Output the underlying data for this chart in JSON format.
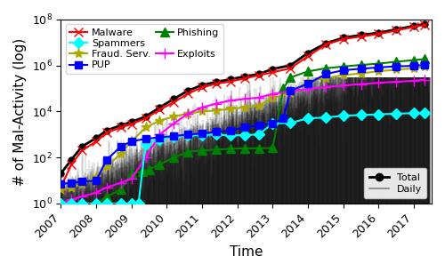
{
  "xlabel": "Time",
  "ylabel": "# of Mal-Activity (log)",
  "xlim": [
    2007.0,
    2017.5
  ],
  "series": {
    "total": {
      "years": [
        2007.0,
        2007.3,
        2007.6,
        2008.0,
        2008.3,
        2008.7,
        2009.0,
        2009.4,
        2009.8,
        2010.2,
        2010.6,
        2011.0,
        2011.4,
        2011.8,
        2012.2,
        2012.6,
        2013.0,
        2013.5,
        2014.0,
        2014.5,
        2015.0,
        2015.5,
        2016.0,
        2016.5,
        2017.0,
        2017.3
      ],
      "values": [
        20,
        80,
        300,
        700,
        1500,
        2500,
        3500,
        6000,
        15000,
        35000,
        80000,
        140000,
        190000,
        250000,
        330000,
        420000,
        700000,
        1000000,
        3500000,
        9000000,
        16000000,
        21000000,
        26000000,
        37000000,
        52000000,
        62000000
      ],
      "color": "black",
      "marker": "o",
      "markersize": 5,
      "linewidth": 2.0,
      "label": "Total"
    },
    "malware": {
      "years": [
        2007.0,
        2007.3,
        2007.6,
        2008.0,
        2008.3,
        2008.7,
        2009.0,
        2009.4,
        2009.8,
        2010.2,
        2010.6,
        2011.0,
        2011.4,
        2011.8,
        2012.2,
        2012.6,
        2013.0,
        2013.5,
        2014.0,
        2014.5,
        2015.0,
        2015.5,
        2016.0,
        2016.5,
        2017.0,
        2017.3
      ],
      "values": [
        5,
        50,
        200,
        500,
        1200,
        2000,
        2800,
        5000,
        12000,
        25000,
        60000,
        110000,
        160000,
        200000,
        270000,
        370000,
        500000,
        750000,
        2500000,
        8000000,
        14000000,
        18000000,
        23000000,
        33000000,
        47000000,
        57000000
      ],
      "color": "red",
      "marker": "x",
      "markersize": 7,
      "linewidth": 1.5,
      "label": "Malware"
    },
    "fraud_serv": {
      "years": [
        2007.0,
        2007.3,
        2007.6,
        2008.0,
        2008.3,
        2008.7,
        2009.0,
        2009.4,
        2009.8,
        2010.2,
        2010.6,
        2011.0,
        2011.4,
        2011.8,
        2012.2,
        2012.6,
        2013.0,
        2013.5,
        2014.0,
        2014.5,
        2015.0,
        2015.5,
        2016.0,
        2016.5,
        2017.0,
        2017.3
      ],
      "values": [
        4,
        5,
        7,
        15,
        40,
        150,
        500,
        2000,
        4000,
        6000,
        8000,
        10000,
        11000,
        13000,
        15000,
        18000,
        38000,
        60000,
        200000,
        280000,
        380000,
        450000,
        560000,
        650000,
        750000,
        850000
      ],
      "color": "#aaaa00",
      "marker": "*",
      "markersize": 8,
      "linewidth": 1.5,
      "label": "Fraud. Serv."
    },
    "phishing": {
      "years": [
        2007.0,
        2007.3,
        2007.6,
        2008.0,
        2008.3,
        2008.7,
        2009.0,
        2009.3,
        2009.5,
        2009.8,
        2010.2,
        2010.6,
        2011.0,
        2011.4,
        2011.8,
        2012.2,
        2012.6,
        2013.0,
        2013.3,
        2013.5,
        2014.0,
        2014.5,
        2015.0,
        2015.5,
        2016.0,
        2016.5,
        2017.0,
        2017.3
      ],
      "values": [
        0.3,
        0.4,
        0.5,
        1,
        2,
        4,
        20,
        25,
        30,
        50,
        100,
        180,
        200,
        220,
        240,
        250,
        250,
        260,
        100000,
        300000,
        550000,
        750000,
        900000,
        1050000,
        1200000,
        1450000,
        1700000,
        1900000
      ],
      "color": "green",
      "marker": "^",
      "markersize": 7,
      "linewidth": 1.5,
      "label": "Phishing"
    },
    "exploits": {
      "years": [
        2007.0,
        2007.3,
        2007.6,
        2008.0,
        2008.3,
        2008.7,
        2009.0,
        2009.4,
        2009.8,
        2010.2,
        2010.6,
        2011.0,
        2011.4,
        2011.8,
        2012.2,
        2012.6,
        2013.0,
        2013.5,
        2014.0,
        2014.5,
        2015.0,
        2015.5,
        2016.0,
        2016.5,
        2017.0,
        2017.3
      ],
      "values": [
        1,
        1.5,
        2,
        3,
        5,
        8,
        12,
        100,
        1000,
        3000,
        8000,
        15000,
        22000,
        30000,
        35000,
        40000,
        58000,
        75000,
        95000,
        115000,
        135000,
        155000,
        175000,
        195000,
        215000,
        240000
      ],
      "color": "magenta",
      "marker": "+",
      "markersize": 8,
      "linewidth": 1.5,
      "label": "Exploits"
    },
    "spammers": {
      "years": [
        2007.0,
        2007.3,
        2007.6,
        2008.0,
        2008.3,
        2008.7,
        2009.0,
        2009.2,
        2009.4,
        2009.8,
        2010.2,
        2010.6,
        2011.0,
        2011.4,
        2011.8,
        2012.2,
        2012.6,
        2013.0,
        2013.5,
        2014.0,
        2014.5,
        2015.0,
        2015.5,
        2016.0,
        2016.5,
        2017.0,
        2017.3
      ],
      "values": [
        1,
        1,
        1,
        1,
        1,
        1,
        1,
        1,
        400,
        600,
        800,
        900,
        950,
        1000,
        900,
        950,
        1000,
        3000,
        3200,
        5000,
        5500,
        6500,
        7000,
        7500,
        8000,
        8500,
        9000
      ],
      "color": "cyan",
      "marker": "D",
      "markersize": 6,
      "linewidth": 1.5,
      "label": "Spammers"
    },
    "pup": {
      "years": [
        2007.0,
        2007.3,
        2007.6,
        2008.0,
        2008.3,
        2008.7,
        2009.0,
        2009.4,
        2009.8,
        2010.2,
        2010.6,
        2011.0,
        2011.4,
        2011.8,
        2012.2,
        2012.6,
        2013.0,
        2013.3,
        2013.5,
        2014.0,
        2014.5,
        2015.0,
        2015.5,
        2016.0,
        2016.5,
        2017.0,
        2017.3
      ],
      "values": [
        7,
        8,
        9,
        10,
        80,
        300,
        500,
        650,
        750,
        850,
        1000,
        1100,
        1300,
        1500,
        2000,
        2500,
        3000,
        5000,
        80000,
        160000,
        420000,
        620000,
        720000,
        820000,
        910000,
        960000,
        1050000
      ],
      "color": "blue",
      "marker": "s",
      "markersize": 6,
      "linewidth": 1.5,
      "label": "PUP"
    }
  },
  "legend_fontsize": 8,
  "axis_label_fontsize": 11,
  "tick_fontsize": 9
}
